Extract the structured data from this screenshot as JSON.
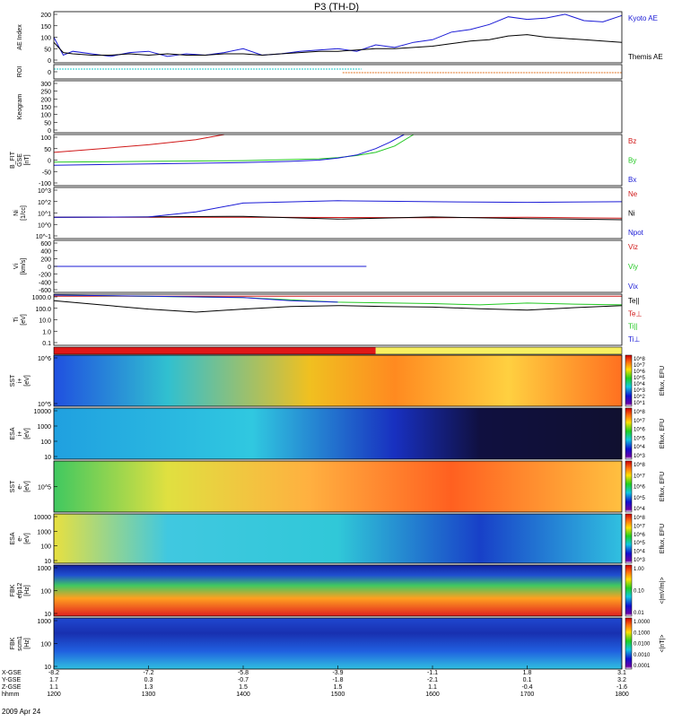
{
  "title": "P3 (TH-D)",
  "date_label": "2009 Apr 24",
  "colors": {
    "blue": "#1a1ad6",
    "red": "#d01818",
    "green": "#22c822",
    "black": "#000000",
    "cyan": "#19c8c8",
    "orange": "#e07020"
  },
  "chart_data": [
    {
      "type": "line",
      "panel": "ae",
      "ylabel": "AE Index",
      "ylim": [
        0,
        200
      ],
      "yticks": [
        "200",
        "150",
        "100",
        "50",
        "0"
      ],
      "series": [
        {
          "name": "Kyoto AE",
          "color": "blue",
          "x": [
            1200,
            1210,
            1220,
            1240,
            1260,
            1280,
            1300,
            1320,
            1340,
            1360,
            1380,
            1400,
            1420,
            1440,
            1460,
            1480,
            1500,
            1520,
            1540,
            1560,
            1580,
            1600,
            1620,
            1640,
            1660,
            1680,
            1700,
            1720,
            1740,
            1760,
            1780,
            1800
          ],
          "y": [
            100,
            30,
            45,
            35,
            25,
            40,
            45,
            25,
            35,
            30,
            40,
            55,
            30,
            35,
            45,
            50,
            55,
            45,
            70,
            60,
            80,
            90,
            120,
            130,
            150,
            180,
            170,
            175,
            190,
            165,
            160,
            185
          ]
        },
        {
          "name": "Themis AE",
          "color": "black",
          "x": [
            1200,
            1210,
            1220,
            1240,
            1260,
            1280,
            1300,
            1320,
            1340,
            1360,
            1380,
            1400,
            1420,
            1440,
            1460,
            1480,
            1500,
            1520,
            1540,
            1560,
            1580,
            1600,
            1620,
            1640,
            1660,
            1680,
            1700,
            1720,
            1740,
            1760,
            1780,
            1800
          ],
          "y": [
            80,
            40,
            35,
            30,
            30,
            35,
            30,
            35,
            30,
            30,
            35,
            35,
            30,
            35,
            40,
            45,
            45,
            50,
            55,
            55,
            60,
            65,
            75,
            85,
            90,
            105,
            110,
            100,
            95,
            90,
            85,
            80
          ]
        }
      ]
    },
    {
      "type": "line",
      "panel": "roi",
      "ylabel": "ROI",
      "yticks": [
        "0"
      ],
      "series": [
        {
          "name": "",
          "color": "cyan",
          "x": [
            1200,
            1525
          ],
          "y": [
            1,
            1
          ]
        },
        {
          "name": "",
          "color": "orange",
          "x": [
            1505,
            1800
          ],
          "y": [
            2,
            2
          ]
        }
      ]
    },
    {
      "type": "heatmap",
      "panel": "keogram",
      "ylabel": "Keogram",
      "ylim": [
        0,
        300
      ],
      "yticks": [
        "300",
        "250",
        "200",
        "150",
        "100",
        "50",
        "0"
      ]
    },
    {
      "type": "line",
      "panel": "bfit",
      "ylabel": "B_FIT\nGSE\n[nT]",
      "ylim": [
        -100,
        100
      ],
      "yticks": [
        "100",
        "50",
        "0",
        "-50",
        "-100"
      ],
      "series": [
        {
          "name": "Bz",
          "color": "red",
          "x": [
            1200,
            1250,
            1300,
            1350,
            1380
          ],
          "y": [
            30,
            45,
            60,
            80,
            100
          ]
        },
        {
          "name": "By",
          "color": "green",
          "x": [
            1200,
            1300,
            1400,
            1450,
            1480,
            1500,
            1520,
            1540,
            1560,
            1580
          ],
          "y": [
            -8,
            -5,
            -2,
            2,
            5,
            10,
            18,
            30,
            55,
            100
          ]
        },
        {
          "name": "Bx",
          "color": "blue",
          "x": [
            1200,
            1300,
            1400,
            1450,
            1480,
            1500,
            1520,
            1540,
            1555,
            1570
          ],
          "y": [
            -20,
            -15,
            -10,
            -5,
            0,
            8,
            20,
            45,
            70,
            100
          ]
        }
      ]
    },
    {
      "type": "line",
      "panel": "ni",
      "ylabel": "Ni\n[1/cc]",
      "ylim": [
        0.01,
        1000
      ],
      "yticks": [
        "10^3",
        "10^2",
        "10^1",
        "10^0",
        "10^-1"
      ],
      "series": [
        {
          "name": "Ne",
          "color": "red",
          "x": [
            1200,
            1400,
            1600,
            1700,
            1800
          ],
          "y": [
            1.2,
            1.2,
            1.1,
            1.2,
            1.0
          ]
        },
        {
          "name": "Ni",
          "color": "black",
          "x": [
            1200,
            1400,
            1500,
            1600,
            1700,
            1800
          ],
          "y": [
            1.2,
            1.5,
            0.8,
            1.3,
            0.9,
            0.7
          ]
        },
        {
          "name": "Npot",
          "color": "blue",
          "x": [
            1200,
            1300,
            1350,
            1400,
            1500,
            1600,
            1700,
            1800
          ],
          "y": [
            1.2,
            1.3,
            4,
            30,
            50,
            40,
            35,
            40
          ]
        }
      ]
    },
    {
      "type": "line",
      "panel": "vi",
      "ylabel": "Vi\n[km/s]",
      "ylim": [
        -600,
        600
      ],
      "yticks": [
        "600",
        "400",
        "200",
        "0",
        "-200",
        "-400",
        "-600"
      ],
      "series": [
        {
          "name": "Viz",
          "color": "red",
          "x": [
            1200,
            1530
          ],
          "y": [
            0,
            0
          ]
        },
        {
          "name": "Viy",
          "color": "green",
          "x": [
            1200,
            1530
          ],
          "y": [
            0,
            0
          ]
        },
        {
          "name": "Vix",
          "color": "blue",
          "x": [
            1200,
            1530
          ],
          "y": [
            0,
            0
          ]
        }
      ]
    },
    {
      "type": "line",
      "panel": "ti",
      "ylabel": "Ti\n[eV]",
      "ylim": [
        0.1,
        3000
      ],
      "yticks": [
        "1000.0",
        "100.0",
        "10.0",
        "1.0",
        "0.1"
      ],
      "series": [
        {
          "name": "Te||",
          "color": "black",
          "x": [
            1200,
            1300,
            1350,
            1400,
            1450,
            1500,
            1550,
            1600,
            1650,
            1700,
            1750,
            1800
          ],
          "y": [
            800,
            150,
            80,
            150,
            250,
            300,
            250,
            220,
            160,
            120,
            200,
            300
          ]
        },
        {
          "name": "Te⊥",
          "color": "red",
          "x": [
            1200,
            1800
          ],
          "y": [
            2000,
            2000
          ]
        },
        {
          "name": "Ti||",
          "color": "green",
          "x": [
            1200,
            1400,
            1500,
            1600,
            1650,
            1700,
            1750,
            1800
          ],
          "y": [
            2500,
            1500,
            600,
            450,
            350,
            500,
            400,
            350
          ]
        },
        {
          "name": "Ti⊥",
          "color": "blue",
          "x": [
            1200,
            1300,
            1400,
            1450,
            1500
          ],
          "y": [
            2500,
            2000,
            1500,
            800,
            600
          ]
        }
      ]
    },
    {
      "type": "heatmap",
      "panel": "sst_ion",
      "ylabel": "SST\ni+\n[eV]",
      "yticks": [
        "10^6",
        "10^5"
      ],
      "cbar_label": "Eflux, EFU",
      "cbar_ticks": [
        "10^8",
        "10^7",
        "10^6",
        "10^5",
        "10^4",
        "10^3",
        "10^2",
        "10^1"
      ]
    },
    {
      "type": "heatmap",
      "panel": "esa_ion",
      "ylabel": "ESA\ni+\n[eV]",
      "yticks": [
        "10000",
        "1000",
        "100",
        "10"
      ],
      "cbar_label": "Eflux, EFU",
      "cbar_ticks": [
        "10^8",
        "10^7",
        "10^6",
        "10^5",
        "10^4",
        "10^3"
      ]
    },
    {
      "type": "heatmap",
      "panel": "sst_e",
      "ylabel": "SST\ne-\n[eV]",
      "yticks": [
        "10^5"
      ],
      "cbar_label": "Eflux, EFU",
      "cbar_ticks": [
        "10^8",
        "10^7",
        "10^6",
        "10^5",
        "10^4"
      ]
    },
    {
      "type": "heatmap",
      "panel": "esa_e",
      "ylabel": "ESA\ne-\n[eV]",
      "yticks": [
        "10000",
        "1000",
        "100",
        "10"
      ],
      "cbar_label": "Eflux, EFU",
      "cbar_ticks": [
        "10^8",
        "10^7",
        "10^6",
        "10^5",
        "10^4",
        "10^3"
      ]
    },
    {
      "type": "heatmap",
      "panel": "fbk_e",
      "ylabel": "FBK\nefp12\n[Hz]",
      "yticks": [
        "1000",
        "100",
        "10"
      ],
      "cbar_label": "<|mV/m|>",
      "cbar_ticks": [
        "1.00",
        "0.10",
        "0.01"
      ]
    },
    {
      "type": "heatmap",
      "panel": "fbk_b",
      "ylabel": "FBK\nscm1\n[Hz]",
      "yticks": [
        "1000",
        "100",
        "10"
      ],
      "cbar_label": "<|nT|>",
      "cbar_ticks": [
        "1.0000",
        "0.1000",
        "0.0100",
        "0.0010",
        "0.0001"
      ]
    }
  ],
  "xaxis": {
    "row_labels": [
      "X-GSE",
      "Y-GSE",
      "Z-GSE",
      "hhmm"
    ],
    "columns": [
      {
        "t": 1200,
        "x": "-8.2",
        "y": "1.7",
        "z": "1.1",
        "hhmm": "1200"
      },
      {
        "t": 1300,
        "x": "-7.2",
        "y": "0.3",
        "z": "1.3",
        "hhmm": "1300"
      },
      {
        "t": 1400,
        "x": "-5.8",
        "y": "-0.7",
        "z": "1.5",
        "hhmm": "1400"
      },
      {
        "t": 1500,
        "x": "-3.9",
        "y": "-1.8",
        "z": "1.5",
        "hhmm": "1500"
      },
      {
        "t": 1600,
        "x": "-1.1",
        "y": "-2.1",
        "z": "1.1",
        "hhmm": "1600"
      },
      {
        "t": 1700,
        "x": "1.8",
        "y": "0.1",
        "z": "-0.4",
        "hhmm": "1700"
      },
      {
        "t": 1800,
        "x": "3.1",
        "y": "3.2",
        "z": "-1.6",
        "hhmm": "1800"
      }
    ]
  }
}
